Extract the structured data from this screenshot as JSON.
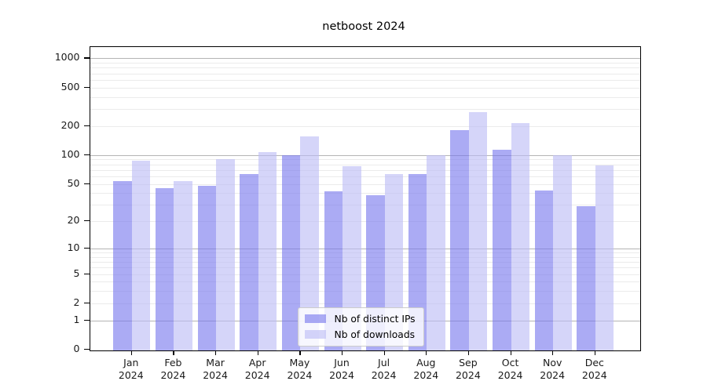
{
  "chart_data": {
    "type": "bar",
    "title": "netboost 2024",
    "categories": [
      "Jan 2024",
      "Feb 2024",
      "Mar 2024",
      "Apr 2024",
      "May 2024",
      "Jun 2024",
      "Jul 2024",
      "Aug 2024",
      "Sep 2024",
      "Oct 2024",
      "Nov 2024",
      "Dec 2024"
    ],
    "series": [
      {
        "name": "Nb of distinct IPs",
        "fill": "rgba(119,119,238,0.62)",
        "values": [
          54,
          45,
          48,
          63,
          100,
          42,
          38,
          63,
          182,
          113,
          43,
          29
        ]
      },
      {
        "name": "Nb of downloads",
        "fill": "rgba(187,187,245,0.62)",
        "values": [
          88,
          53,
          91,
          107,
          157,
          77,
          63,
          100,
          280,
          215,
          100,
          78
        ]
      }
    ],
    "xlabel": "",
    "ylabel": "",
    "yscale": "log1p",
    "ylim": [
      0,
      1310
    ],
    "y_ticks": [
      0,
      1,
      2,
      5,
      10,
      20,
      50,
      100,
      200,
      500,
      1000
    ],
    "major_gridlines": [
      1,
      10,
      100,
      1000
    ],
    "minor_grid": true,
    "grid": true,
    "legend": {
      "position": "lower center",
      "entries": [
        "Nb of distinct IPs",
        "Nb of downloads"
      ]
    },
    "colors": {
      "bar_ips": "#7777ee",
      "bar_downloads": "#bbbbf5",
      "major_grid": "#b4b4b4",
      "minor_grid": "#ebebeb",
      "background": "#ffffff",
      "text": "#000000"
    }
  }
}
